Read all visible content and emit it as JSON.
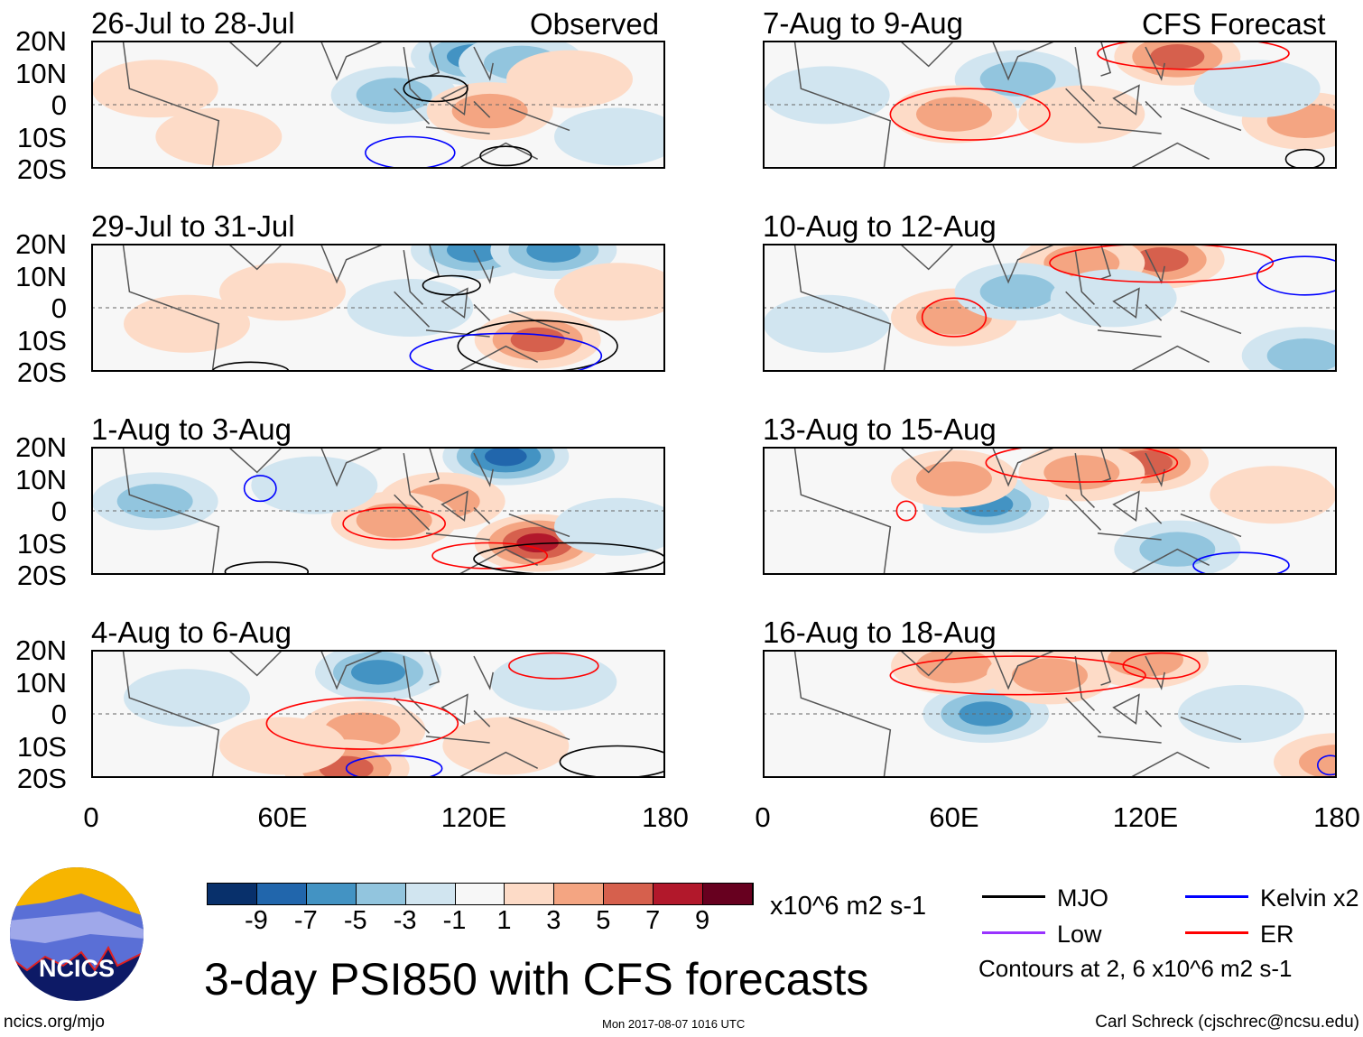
{
  "title": "3-day PSI850 with CFS forecasts",
  "units": "x10^6 m2 s-1",
  "contour_note": "Contours at 2, 6 x10^6 m2 s-1",
  "footer": {
    "left": "ncics.org/mjo",
    "center": "Mon 2017-08-07 1016 UTC",
    "right": "Carl Schreck (cjschrec@ncsu.edu)"
  },
  "logo_text": "NCICS",
  "column_labels": {
    "observed": "Observed",
    "forecast": "CFS Forecast"
  },
  "lat_labels": [
    "20N",
    "10N",
    "0",
    "10S",
    "20S"
  ],
  "lon_labels": [
    "0",
    "60E",
    "120E",
    "180"
  ],
  "colorbar": {
    "labels": [
      "-9",
      "-7",
      "-5",
      "-3",
      "-1",
      "1",
      "3",
      "5",
      "7",
      "9"
    ],
    "colors": [
      "#08306b",
      "#2166ac",
      "#4393c3",
      "#92c5de",
      "#d1e5f0",
      "#f7f7f7",
      "#fddbc7",
      "#f4a582",
      "#d6604d",
      "#b2182b",
      "#67001f"
    ]
  },
  "legend": [
    {
      "label": "MJO",
      "color": "#000000"
    },
    {
      "label": "Kelvin x2",
      "color": "#0000ff"
    },
    {
      "label": "Low",
      "color": "#9933ff"
    },
    {
      "label": "ER",
      "color": "#ff0000"
    }
  ],
  "chart_data": {
    "type": "heatmap",
    "xlim": [
      0,
      180
    ],
    "ylim": [
      -20,
      20
    ],
    "panels": [
      {
        "title": "26-Jul to 28-Jul",
        "anoms": [
          [
            120,
            15,
            -6
          ],
          [
            135,
            13,
            -4
          ],
          [
            95,
            3,
            -3
          ],
          [
            125,
            -2,
            3
          ],
          [
            150,
            8,
            2
          ],
          [
            40,
            -10,
            2
          ],
          [
            165,
            -10,
            -1
          ],
          [
            20,
            5,
            1
          ]
        ],
        "contours": [
          [
            108,
            5,
            10,
            4,
            "#000000"
          ],
          [
            130,
            -16,
            8,
            3,
            "#000000"
          ],
          [
            100,
            -15,
            14,
            5,
            "#0000ff"
          ]
        ]
      },
      {
        "title": "7-Aug to 9-Aug",
        "anoms": [
          [
            130,
            15,
            6
          ],
          [
            80,
            8,
            -4
          ],
          [
            60,
            -3,
            3
          ],
          [
            100,
            -3,
            2
          ],
          [
            20,
            3,
            -2
          ],
          [
            170,
            -5,
            3
          ],
          [
            155,
            5,
            -2
          ]
        ],
        "contours": [
          [
            65,
            -3,
            25,
            8,
            "#ff0000"
          ],
          [
            135,
            16,
            30,
            5,
            "#ff0000"
          ],
          [
            170,
            -17,
            6,
            3,
            "#000000"
          ]
        ]
      },
      {
        "title": "29-Jul to 31-Jul",
        "anoms": [
          [
            120,
            18,
            -6
          ],
          [
            145,
            18,
            -6
          ],
          [
            100,
            0,
            -2
          ],
          [
            140,
            -10,
            5
          ],
          [
            60,
            5,
            2
          ],
          [
            165,
            5,
            2
          ],
          [
            30,
            -5,
            1
          ]
        ],
        "contours": [
          [
            113,
            7,
            9,
            3,
            "#000000"
          ],
          [
            140,
            -12,
            25,
            8,
            "#000000"
          ],
          [
            50,
            -20,
            12,
            3,
            "#000000"
          ],
          [
            130,
            -15,
            30,
            7,
            "#0000ff"
          ]
        ]
      },
      {
        "title": "10-Aug to 12-Aug",
        "anoms": [
          [
            125,
            15,
            6
          ],
          [
            100,
            14,
            4
          ],
          [
            60,
            -3,
            3
          ],
          [
            80,
            5,
            -3
          ],
          [
            170,
            -15,
            -3
          ],
          [
            110,
            3,
            -2
          ],
          [
            20,
            -5,
            -2
          ]
        ],
        "contours": [
          [
            125,
            14,
            35,
            6,
            "#ff0000"
          ],
          [
            60,
            -3,
            10,
            6,
            "#ff0000"
          ],
          [
            170,
            10,
            15,
            6,
            "#0000ff"
          ]
        ]
      },
      {
        "title": "1-Aug to 3-Aug",
        "anoms": [
          [
            130,
            17,
            -7
          ],
          [
            110,
            3,
            4
          ],
          [
            140,
            -10,
            7
          ],
          [
            95,
            -3,
            3
          ],
          [
            20,
            3,
            -3
          ],
          [
            70,
            8,
            -2
          ],
          [
            165,
            -5,
            -1
          ]
        ],
        "contours": [
          [
            95,
            -4,
            16,
            5,
            "#ff0000"
          ],
          [
            125,
            -14,
            18,
            4,
            "#ff0000"
          ],
          [
            150,
            -15,
            30,
            5,
            "#000000"
          ],
          [
            55,
            -19,
            13,
            3,
            "#000000"
          ],
          [
            53,
            7,
            5,
            4,
            "#0000ff"
          ]
        ]
      },
      {
        "title": "13-Aug to 15-Aug",
        "anoms": [
          [
            120,
            15,
            6
          ],
          [
            70,
            2,
            -6
          ],
          [
            60,
            10,
            3
          ],
          [
            100,
            12,
            4
          ],
          [
            130,
            -12,
            -3
          ],
          [
            160,
            5,
            2
          ]
        ],
        "contours": [
          [
            100,
            15,
            30,
            6,
            "#ff0000"
          ],
          [
            45,
            0,
            3,
            3,
            "#ff0000"
          ],
          [
            150,
            -17,
            15,
            4,
            "#0000ff"
          ]
        ]
      },
      {
        "title": "4-Aug to 6-Aug",
        "anoms": [
          [
            90,
            13,
            -5
          ],
          [
            85,
            -5,
            4
          ],
          [
            80,
            -17,
            5
          ],
          [
            130,
            -10,
            2
          ],
          [
            145,
            10,
            -2
          ],
          [
            30,
            5,
            -1
          ],
          [
            60,
            -10,
            2
          ]
        ],
        "contours": [
          [
            85,
            -3,
            30,
            8,
            "#ff0000"
          ],
          [
            145,
            15,
            14,
            4,
            "#ff0000"
          ],
          [
            165,
            -15,
            18,
            5,
            "#000000"
          ],
          [
            95,
            -17,
            15,
            4,
            "#0000ff"
          ]
        ]
      },
      {
        "title": "16-Aug to 18-Aug",
        "anoms": [
          [
            70,
            0,
            -5
          ],
          [
            60,
            15,
            4
          ],
          [
            90,
            12,
            3
          ],
          [
            120,
            17,
            3
          ],
          [
            180,
            -15,
            3
          ],
          [
            150,
            0,
            -1
          ]
        ],
        "contours": [
          [
            80,
            12,
            40,
            6,
            "#ff0000"
          ],
          [
            125,
            15,
            12,
            4,
            "#ff0000"
          ],
          [
            178,
            -16,
            4,
            3,
            "#0000ff"
          ]
        ]
      }
    ]
  }
}
